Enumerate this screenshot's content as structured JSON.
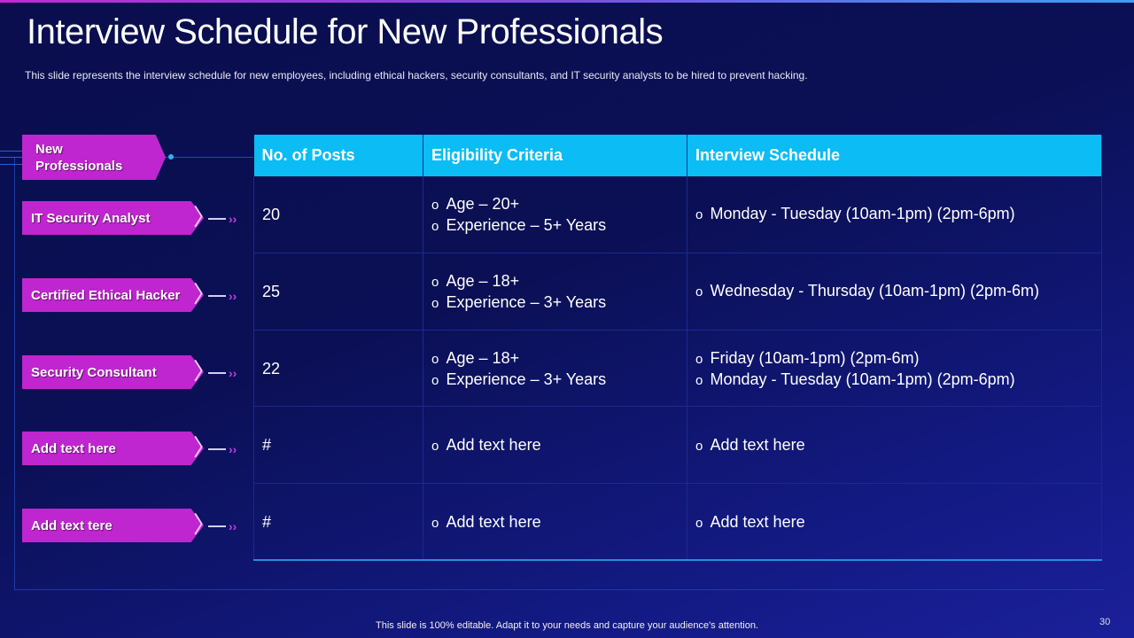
{
  "title": "Interview Schedule for New Professionals",
  "subtitle": "This slide represents the interview  schedule for new employees, including ethical hackers, security consultants, and IT security analysts to be hired to prevent  hacking.",
  "main_tag": "New Professionals",
  "headers": [
    "No. of Posts",
    "Eligibility Criteria",
    "Interview Schedule"
  ],
  "rows": [
    {
      "label": "IT Security Analyst",
      "posts": "20",
      "criteria": [
        "Age – 20+",
        "Experience – 5+ Years"
      ],
      "schedule": [
        "Monday - Tuesday (10am-1pm) (2pm-6pm)"
      ]
    },
    {
      "label": "Certified Ethical Hacker",
      "posts": "25",
      "criteria": [
        "Age – 18+",
        "Experience – 3+ Years"
      ],
      "schedule": [
        "Wednesday - Thursday (10am-1pm) (2pm-6m)"
      ]
    },
    {
      "label": "Security Consultant",
      "posts": "22",
      "criteria": [
        "Age – 18+",
        "Experience – 3+ Years"
      ],
      "schedule": [
        "Friday (10am-1pm) (2pm-6m)",
        "Monday - Tuesday (10am-1pm) (2pm-6pm)"
      ]
    },
    {
      "label": "Add text here",
      "posts": "#",
      "criteria": [
        "Add text here"
      ],
      "schedule": [
        "Add text here"
      ]
    },
    {
      "label": "Add text tere",
      "posts": "#",
      "criteria": [
        "Add text here"
      ],
      "schedule": [
        "Add text here"
      ]
    }
  ],
  "footer": "This slide is 100% editable. Adapt it to your needs and capture your audience's attention.",
  "page_number": "30",
  "colors": {
    "tag": "#c026cf",
    "header": "#0bbcf5",
    "background": "#0a0e4e"
  }
}
